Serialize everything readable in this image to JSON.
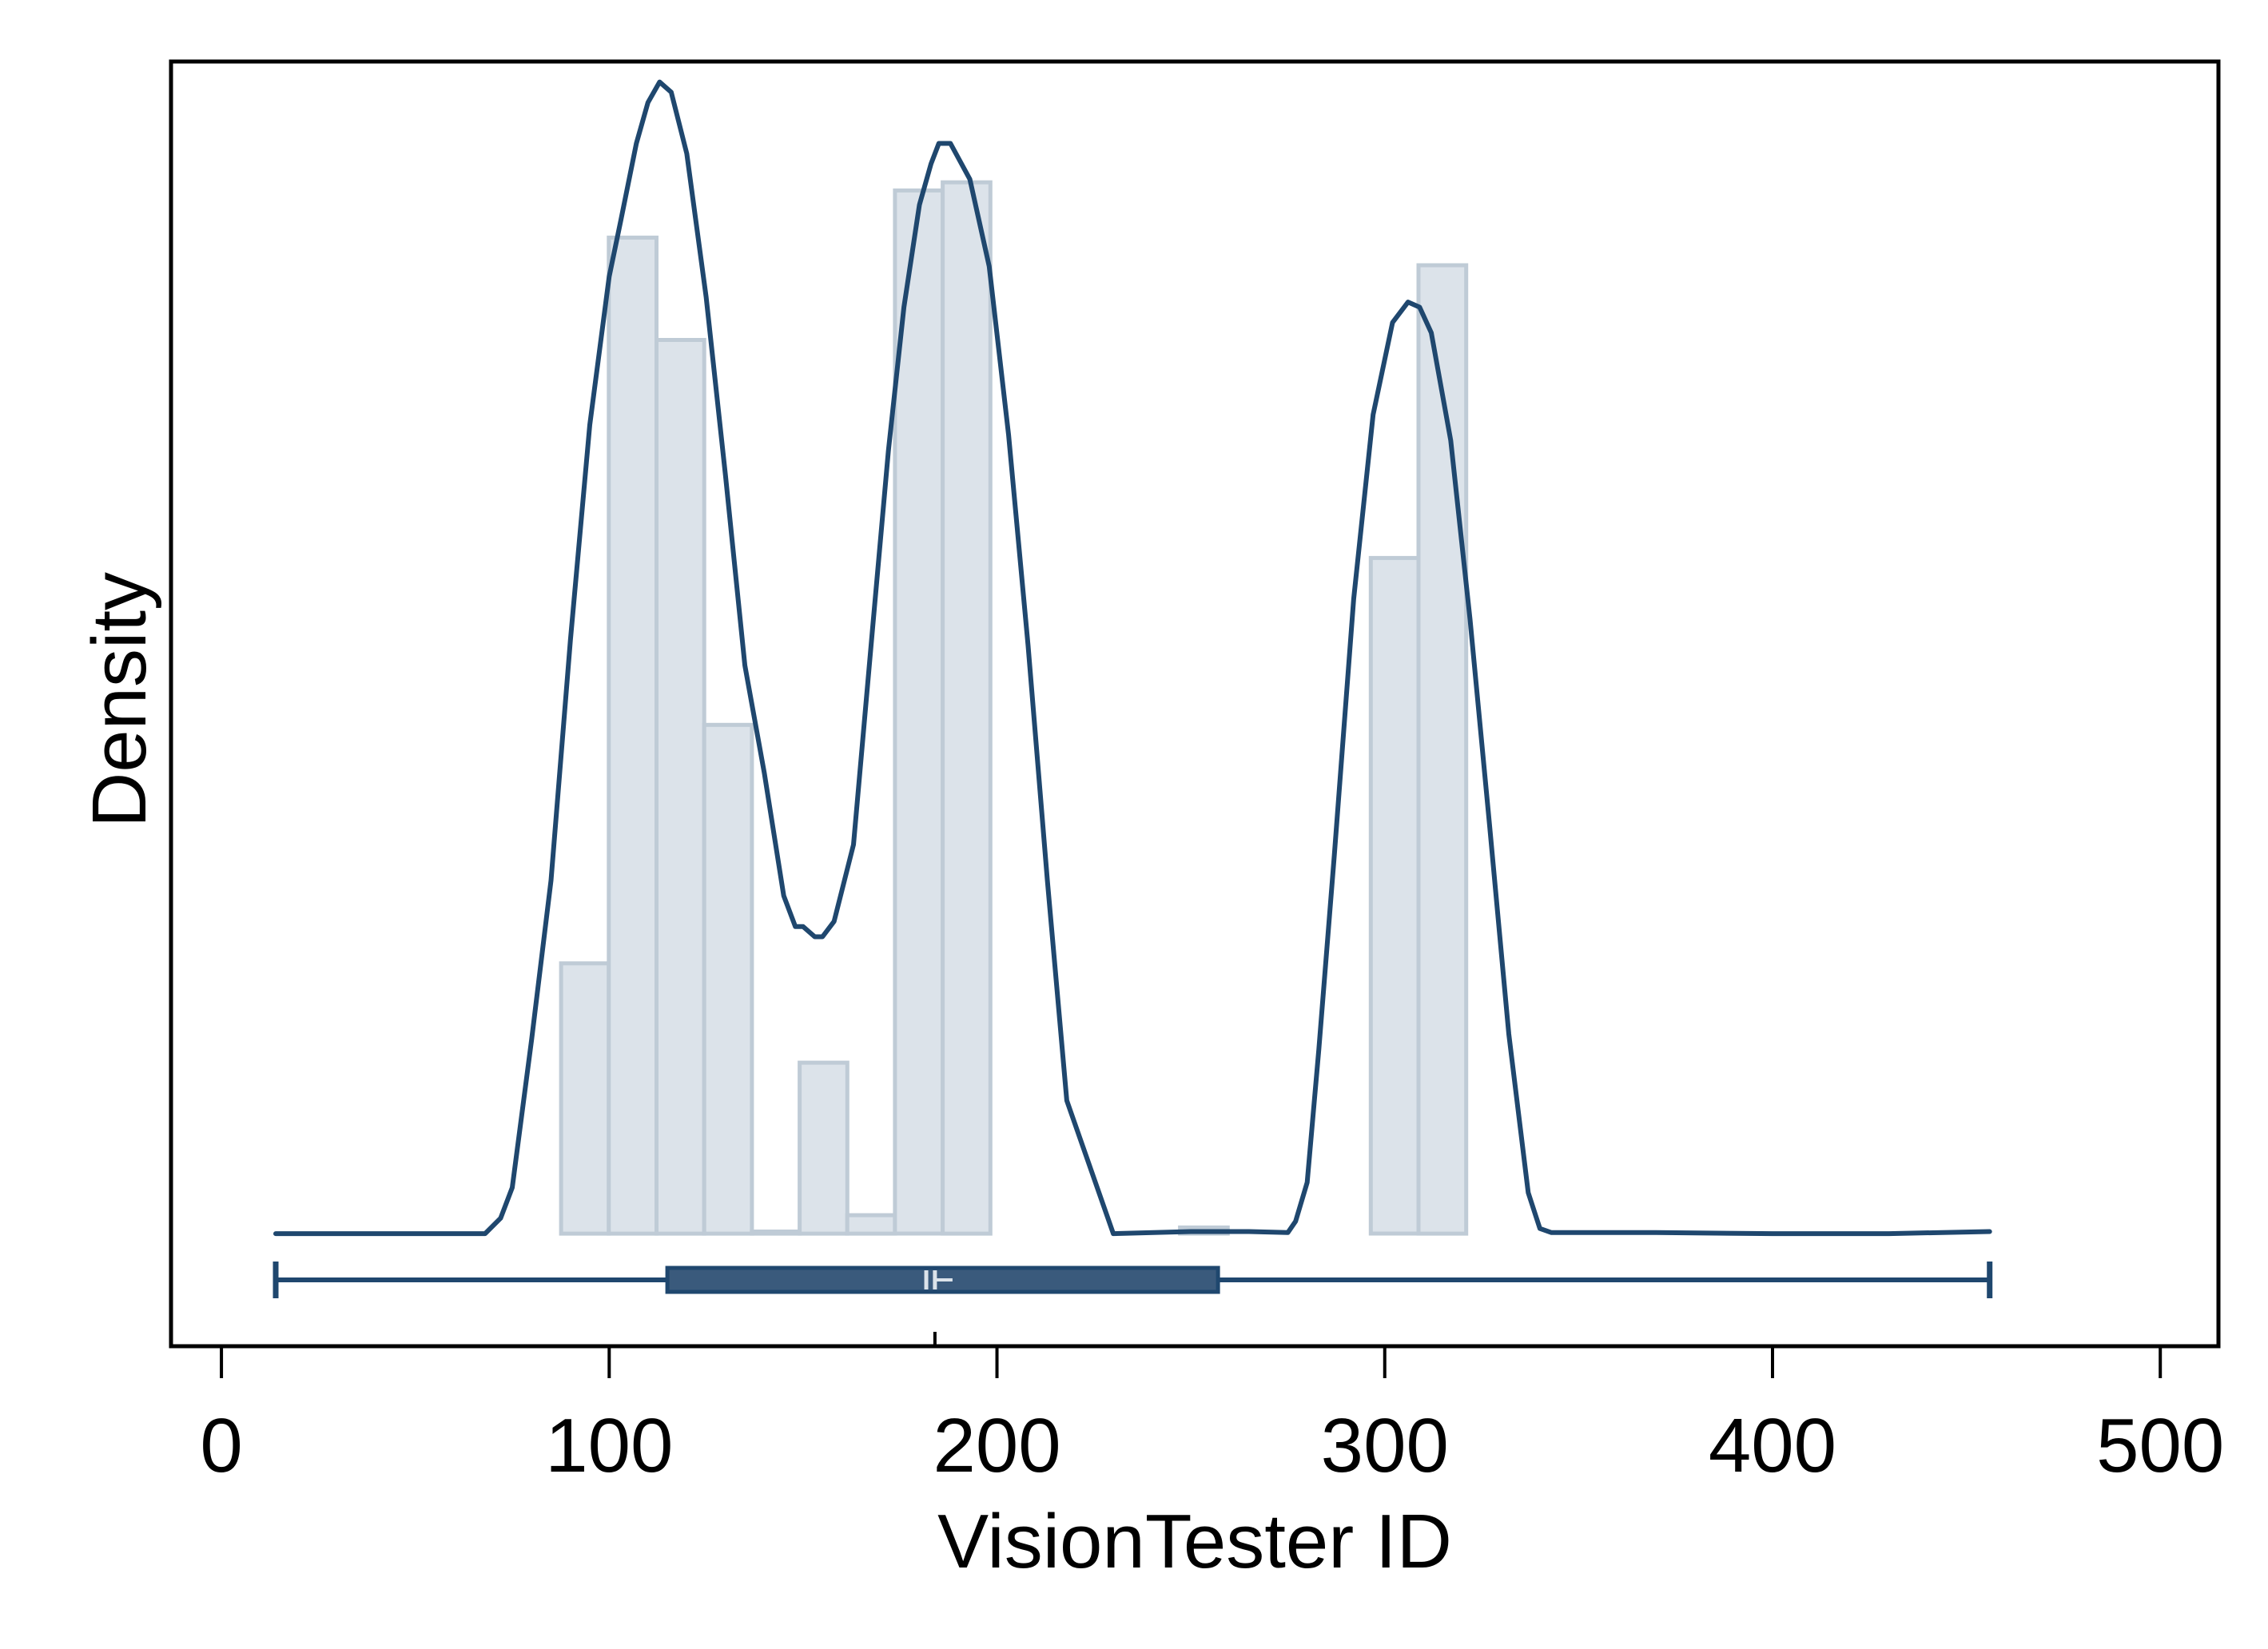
{
  "chart_data": {
    "type": "histogram",
    "title": "",
    "xlabel": "VisionTester ID",
    "ylabel": "Density",
    "xlim": [
      -13,
      515
    ],
    "ylim": [
      -0.0011,
      0.01145
    ],
    "x_ticks": [
      0,
      100,
      200,
      300,
      400,
      500
    ],
    "x_tick_labels": [
      "0",
      "100",
      "200",
      "300",
      "400",
      "500"
    ],
    "y_ticks_shown": false,
    "grid": false,
    "legend": "none",
    "histogram": {
      "bin_width": 12.3,
      "bins": [
        {
          "start": 87.6,
          "end": 99.9,
          "density": 0.00264
        },
        {
          "start": 99.9,
          "end": 112.2,
          "density": 0.00973
        },
        {
          "start": 112.2,
          "end": 124.5,
          "density": 0.00873
        },
        {
          "start": 124.5,
          "end": 136.8,
          "density": 0.00497
        },
        {
          "start": 136.8,
          "end": 149.1,
          "density": 2e-05
        },
        {
          "start": 149.1,
          "end": 161.4,
          "density": 0.00167
        },
        {
          "start": 161.4,
          "end": 173.7,
          "density": 0.00018
        },
        {
          "start": 173.7,
          "end": 186.0,
          "density": 0.01019
        },
        {
          "start": 186.0,
          "end": 198.3,
          "density": 0.01027
        },
        {
          "start": 247.2,
          "end": 259.5,
          "density": 6e-05
        },
        {
          "start": 296.4,
          "end": 308.7,
          "density": 0.0066
        },
        {
          "start": 308.7,
          "end": 321.0,
          "density": 0.00946
        }
      ]
    },
    "kde": {
      "x": [
        14,
        30,
        50,
        68,
        72,
        75,
        80,
        85,
        90,
        95,
        100,
        103,
        107,
        110,
        113,
        116,
        120,
        125,
        130,
        135,
        140,
        145,
        148,
        150,
        153,
        155,
        158,
        163,
        168,
        172,
        176,
        180,
        183,
        185,
        188,
        193,
        198,
        203,
        208,
        213,
        218,
        230,
        250,
        265,
        275,
        277,
        280,
        283,
        287,
        292,
        297,
        302,
        306,
        309,
        312,
        317,
        322,
        327,
        332,
        337,
        340,
        343,
        350,
        370,
        400,
        430,
        456
      ],
      "y": [
        0.0,
        0.0,
        0.0,
        0.0,
        0.00015,
        0.00045,
        0.0019,
        0.00345,
        0.0058,
        0.0079,
        0.00935,
        0.0099,
        0.01065,
        0.01105,
        0.01125,
        0.01115,
        0.01055,
        0.00915,
        0.0074,
        0.00555,
        0.0045,
        0.0033,
        0.003,
        0.003,
        0.0029,
        0.0029,
        0.00305,
        0.0038,
        0.00595,
        0.00765,
        0.00905,
        0.01005,
        0.01045,
        0.01065,
        0.01065,
        0.0103,
        0.00945,
        0.0078,
        0.00575,
        0.00345,
        0.0013,
        0.0,
        2e-05,
        2e-05,
        1e-05,
        0.00012,
        0.0005,
        0.0018,
        0.0037,
        0.0062,
        0.008,
        0.0089,
        0.0091,
        0.00905,
        0.0088,
        0.00775,
        0.006,
        0.004,
        0.00195,
        0.0004,
        5e-05,
        1e-05,
        1e-05,
        1e-05,
        0.0,
        0.0,
        2e-05
      ]
    },
    "boxplot": {
      "whisker_low": 14,
      "q1": 115,
      "median": 184,
      "mean": 183,
      "q3": 257,
      "whisker_high": 456
    },
    "colors": {
      "bar_fill": "#dce3ea",
      "bar_stroke": "#bfcbd6",
      "kde_line": "#1f476e",
      "box_fill": "#3a5a7c",
      "box_stroke": "#1f476e",
      "median_mark": "#dce3ea",
      "frame": "#000000"
    }
  }
}
